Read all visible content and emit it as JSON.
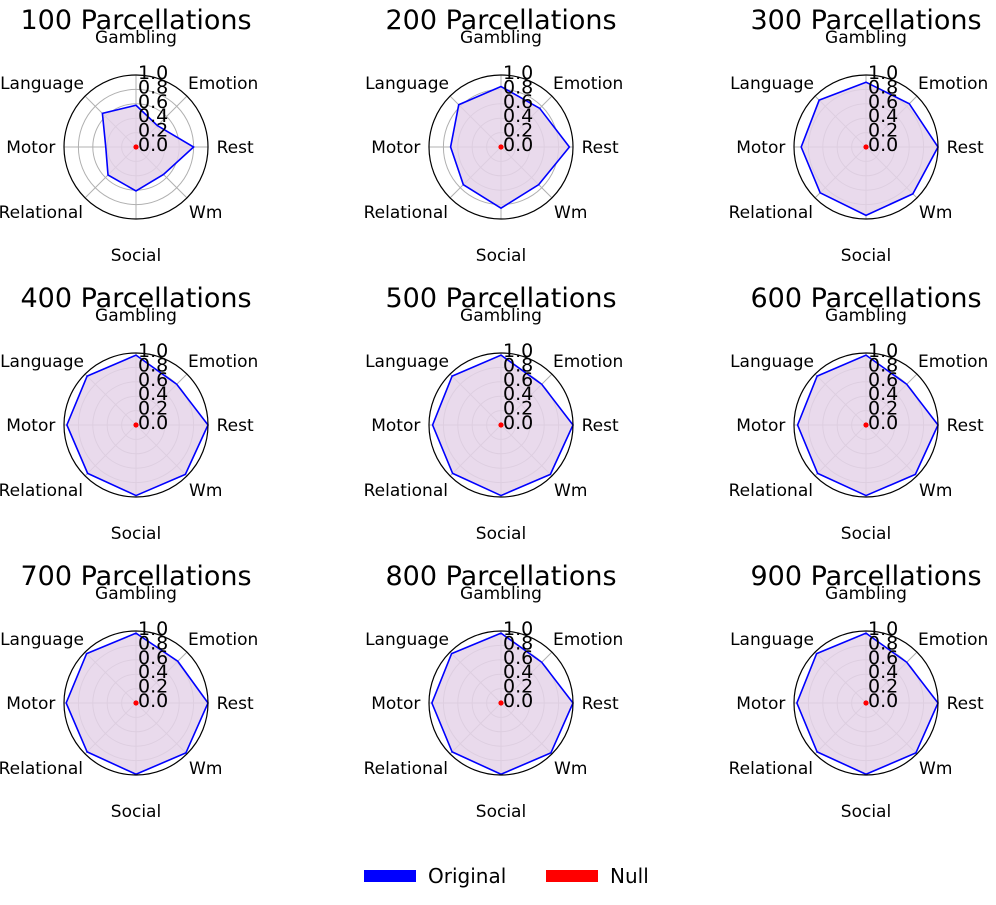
{
  "chart_data": [
    {
      "type": "radar",
      "title": "100 Parcellations",
      "axes": [
        "Gambling",
        "Emotion",
        "Rest",
        "Wm",
        "Social",
        "Relational",
        "Motor",
        "Language"
      ],
      "rlim": [
        0,
        1
      ],
      "rticks": [
        "0.0",
        "0.2",
        "0.4",
        "0.6",
        "0.8",
        "1.0"
      ],
      "series": [
        {
          "name": "Original",
          "values": [
            0.58,
            0.42,
            0.8,
            0.54,
            0.61,
            0.55,
            0.42,
            0.66
          ]
        },
        {
          "name": "Null",
          "values": [
            0.01,
            0.01,
            0.01,
            0.01,
            0.01,
            0.01,
            0.01,
            0.01
          ]
        }
      ]
    },
    {
      "type": "radar",
      "title": "200 Parcellations",
      "axes": [
        "Gambling",
        "Emotion",
        "Rest",
        "Wm",
        "Social",
        "Relational",
        "Motor",
        "Language"
      ],
      "rlim": [
        0,
        1
      ],
      "rticks": [
        "0.0",
        "0.2",
        "0.4",
        "0.6",
        "0.8",
        "1.0"
      ],
      "series": [
        {
          "name": "Original",
          "values": [
            0.84,
            0.76,
            0.95,
            0.74,
            0.85,
            0.74,
            0.7,
            0.83
          ]
        },
        {
          "name": "Null",
          "values": [
            0.01,
            0.01,
            0.01,
            0.01,
            0.01,
            0.01,
            0.01,
            0.01
          ]
        }
      ]
    },
    {
      "type": "radar",
      "title": "300 Parcellations",
      "axes": [
        "Gambling",
        "Emotion",
        "Rest",
        "Wm",
        "Social",
        "Relational",
        "Motor",
        "Language"
      ],
      "rlim": [
        0,
        1
      ],
      "rticks": [
        "0.0",
        "0.2",
        "0.4",
        "0.6",
        "0.8",
        "1.0"
      ],
      "series": [
        {
          "name": "Original",
          "values": [
            0.9,
            0.85,
            1.0,
            0.92,
            0.95,
            0.9,
            0.9,
            0.92
          ]
        },
        {
          "name": "Null",
          "values": [
            0.01,
            0.01,
            0.01,
            0.01,
            0.01,
            0.01,
            0.01,
            0.01
          ]
        }
      ]
    },
    {
      "type": "radar",
      "title": "400 Parcellations",
      "axes": [
        "Gambling",
        "Emotion",
        "Rest",
        "Wm",
        "Social",
        "Relational",
        "Motor",
        "Language"
      ],
      "rlim": [
        0,
        1
      ],
      "rticks": [
        "0.0",
        "0.2",
        "0.4",
        "0.6",
        "0.8",
        "1.0"
      ],
      "series": [
        {
          "name": "Original",
          "values": [
            0.97,
            0.8,
            1.0,
            0.97,
            0.98,
            0.95,
            0.96,
            0.96
          ]
        },
        {
          "name": "Null",
          "values": [
            0.01,
            0.01,
            0.01,
            0.01,
            0.01,
            0.01,
            0.01,
            0.01
          ]
        }
      ]
    },
    {
      "type": "radar",
      "title": "500 Parcellations",
      "axes": [
        "Gambling",
        "Emotion",
        "Rest",
        "Wm",
        "Social",
        "Relational",
        "Motor",
        "Language"
      ],
      "rlim": [
        0,
        1
      ],
      "rticks": [
        "0.0",
        "0.2",
        "0.4",
        "0.6",
        "0.8",
        "1.0"
      ],
      "series": [
        {
          "name": "Original",
          "values": [
            0.97,
            0.8,
            1.0,
            0.97,
            0.98,
            0.95,
            0.95,
            0.96
          ]
        },
        {
          "name": "Null",
          "values": [
            0.01,
            0.01,
            0.01,
            0.01,
            0.01,
            0.01,
            0.01,
            0.01
          ]
        }
      ]
    },
    {
      "type": "radar",
      "title": "600 Parcellations",
      "axes": [
        "Gambling",
        "Emotion",
        "Rest",
        "Wm",
        "Social",
        "Relational",
        "Motor",
        "Language"
      ],
      "rlim": [
        0,
        1
      ],
      "rticks": [
        "0.0",
        "0.2",
        "0.4",
        "0.6",
        "0.8",
        "1.0"
      ],
      "series": [
        {
          "name": "Original",
          "values": [
            0.97,
            0.8,
            1.0,
            0.97,
            0.98,
            0.95,
            0.95,
            0.96
          ]
        },
        {
          "name": "Null",
          "values": [
            0.01,
            0.01,
            0.01,
            0.01,
            0.01,
            0.01,
            0.01,
            0.01
          ]
        }
      ]
    },
    {
      "type": "radar",
      "title": "700 Parcellations",
      "axes": [
        "Gambling",
        "Emotion",
        "Rest",
        "Wm",
        "Social",
        "Relational",
        "Motor",
        "Language"
      ],
      "rlim": [
        0,
        1
      ],
      "rticks": [
        "0.0",
        "0.2",
        "0.4",
        "0.6",
        "0.8",
        "1.0"
      ],
      "series": [
        {
          "name": "Original",
          "values": [
            0.97,
            0.82,
            1.0,
            0.98,
            0.99,
            0.96,
            0.97,
            0.97
          ]
        },
        {
          "name": "Null",
          "values": [
            0.01,
            0.01,
            0.01,
            0.01,
            0.01,
            0.01,
            0.01,
            0.01
          ]
        }
      ]
    },
    {
      "type": "radar",
      "title": "800 Parcellations",
      "axes": [
        "Gambling",
        "Emotion",
        "Rest",
        "Wm",
        "Social",
        "Relational",
        "Motor",
        "Language"
      ],
      "rlim": [
        0,
        1
      ],
      "rticks": [
        "0.0",
        "0.2",
        "0.4",
        "0.6",
        "0.8",
        "1.0"
      ],
      "series": [
        {
          "name": "Original",
          "values": [
            0.97,
            0.8,
            1.0,
            0.98,
            0.99,
            0.96,
            0.96,
            0.97
          ]
        },
        {
          "name": "Null",
          "values": [
            0.01,
            0.01,
            0.01,
            0.01,
            0.01,
            0.01,
            0.01,
            0.01
          ]
        }
      ]
    },
    {
      "type": "radar",
      "title": "900 Parcellations",
      "axes": [
        "Gambling",
        "Emotion",
        "Rest",
        "Wm",
        "Social",
        "Relational",
        "Motor",
        "Language"
      ],
      "rlim": [
        0,
        1
      ],
      "rticks": [
        "0.0",
        "0.2",
        "0.4",
        "0.6",
        "0.8",
        "1.0"
      ],
      "series": [
        {
          "name": "Original",
          "values": [
            0.97,
            0.8,
            1.0,
            0.98,
            0.99,
            0.96,
            0.96,
            0.97
          ]
        },
        {
          "name": "Null",
          "values": [
            0.01,
            0.01,
            0.01,
            0.01,
            0.01,
            0.01,
            0.01,
            0.01
          ]
        }
      ]
    }
  ],
  "legend": {
    "items": [
      {
        "label": "Original",
        "color": "#0000ff"
      },
      {
        "label": "Null",
        "color": "#ff0000"
      }
    ]
  },
  "colors": {
    "original": "#0000ff",
    "null": "#ff0000",
    "fill": "#e5d3e9",
    "grid": "#b0b0b0"
  }
}
